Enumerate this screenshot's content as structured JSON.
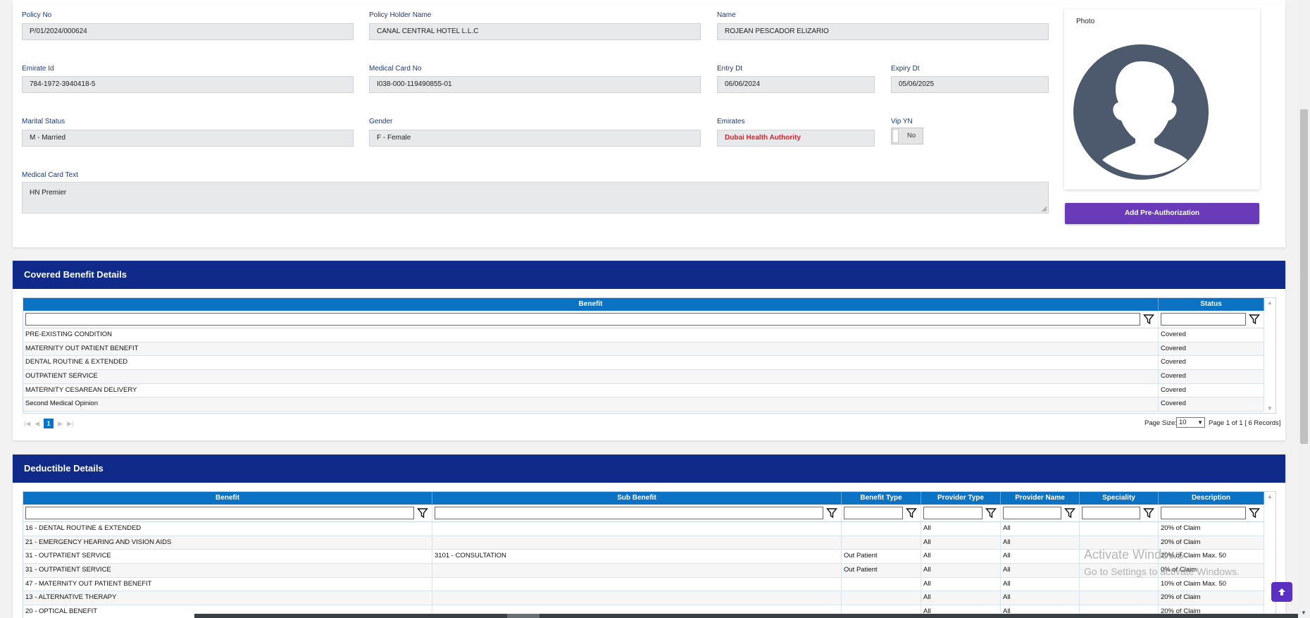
{
  "policy": {
    "policy_no": {
      "label": "Policy No",
      "value": "P/01/2024/000624"
    },
    "holder_name": {
      "label": "Policy Holder Name",
      "value": "CANAL CENTRAL HOTEL L.L.C"
    },
    "name": {
      "label": "Name",
      "value": "ROJEAN PESCADOR ELIZARIO"
    },
    "emirate_id": {
      "label": "Emirate Id",
      "value": "784-1972-3940418-5"
    },
    "medical_card_no": {
      "label": "Medical Card No",
      "value": "I038-000-119490855-01"
    },
    "entry_dt": {
      "label": "Entry Dt",
      "value": "06/06/2024"
    },
    "expiry_dt": {
      "label": "Expiry Dt",
      "value": "05/06/2025"
    },
    "marital_status": {
      "label": "Marital Status",
      "value": "M - Married"
    },
    "gender": {
      "label": "Gender",
      "value": "F - Female"
    },
    "emirates": {
      "label": "Emirates",
      "value": "Dubai Health Authority"
    },
    "vip_yn": {
      "label": "Vip YN",
      "value": "No"
    },
    "medical_card_text": {
      "label": "Medical Card Text",
      "value": "HN Premier"
    }
  },
  "photo": {
    "label": "Photo"
  },
  "add_preauth_label": "Add Pre-Authorization",
  "colors": {
    "header_blue": "#0f2a88",
    "grid_header": "#0b72c4",
    "button_purple": "#6a3bb8",
    "emirates_red": "#e0202a"
  },
  "covered": {
    "title": "Covered Benefit Details",
    "columns": [
      "Benefit",
      "Status"
    ],
    "rows": [
      [
        "PRE-EXISTING CONDITION",
        "Covered"
      ],
      [
        "MATERNITY OUT PATIENT BENEFIT",
        "Covered"
      ],
      [
        "DENTAL ROUTINE & EXTENDED",
        "Covered"
      ],
      [
        "OUTPATIENT SERVICE",
        "Covered"
      ],
      [
        "MATERNITY CESAREAN DELIVERY",
        "Covered"
      ],
      [
        "Second Medical Opinion",
        "Covered"
      ]
    ],
    "pager": {
      "current_page": "1",
      "page_size_label": "Page Size:",
      "page_size": "10",
      "summary": "Page 1 of 1 [ 6 Records]"
    }
  },
  "deductible": {
    "title": "Deductible Details",
    "columns": [
      "Benefit",
      "Sub Benefit",
      "Benefit Type",
      "Provider Type",
      "Provider Name",
      "Speciality",
      "Description"
    ],
    "rows": [
      [
        "16 - DENTAL ROUTINE & EXTENDED",
        "",
        "",
        "All",
        "All",
        "",
        "20% of Claim"
      ],
      [
        "21 - EMERGENCY HEARING AND VISION AIDS",
        "",
        "",
        "All",
        "All",
        "",
        "20% of Claim"
      ],
      [
        "31 - OUTPATIENT SERVICE",
        "3101 - CONSULTATION",
        "Out Patient",
        "All",
        "All",
        "",
        "20% of Claim Max. 50"
      ],
      [
        "31 - OUTPATIENT SERVICE",
        "",
        "Out Patient",
        "All",
        "All",
        "",
        "0% of Claim"
      ],
      [
        "47 - MATERNITY OUT PATIENT BENEFIT",
        "",
        "",
        "All",
        "All",
        "",
        "10% of Claim Max. 50"
      ],
      [
        "13 - ALTERNATIVE THERAPY",
        "",
        "",
        "All",
        "All",
        "",
        "20% of Claim"
      ],
      [
        "20 - OPTICAL BENEFIT",
        "",
        "",
        "All",
        "All",
        "",
        "20% of Claim"
      ]
    ]
  },
  "watermark": {
    "line1": "Activate Windows",
    "line2": "Go to Settings to activate Windows."
  },
  "scroll_top_icon": "arrow-up-icon"
}
